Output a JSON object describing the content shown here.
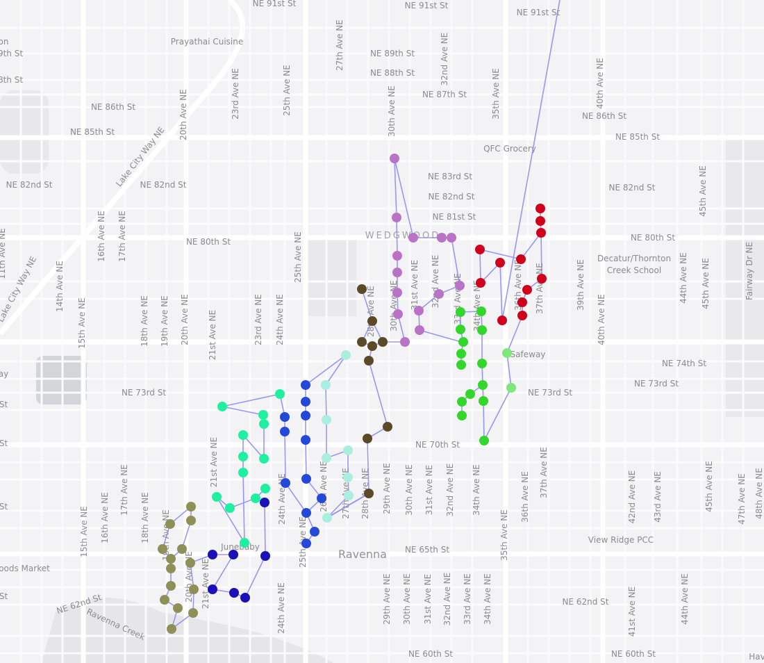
{
  "map": {
    "background_color": "#f3f3f5",
    "road_color": "#ffffff",
    "route_line_color": "#8c8cf5",
    "labels": [
      "NE 91st St",
      "NE 91st St",
      "NE 91st St",
      "Prayathai Cuisine",
      "NE 89th St",
      "NE 88th St",
      "NE 87th St",
      "NE 86th St",
      "NE 86th St",
      "NE 85th St",
      "NE 85th St",
      "QFC Grocery",
      "NE 83rd St",
      "NE 82nd St",
      "NE 82nd St",
      "NE 82nd St",
      "NE 82nd St",
      "NE 81st St",
      "WEDGWOOD",
      "NE 80th St",
      "NE 80th St",
      "Decatur/Thornton",
      "Creek School",
      "Safeway",
      "NE 74th St",
      "NE 73rd St",
      "NE 73rd St",
      "NE 73rd St",
      "NE 70th St",
      "View Ridge PCC",
      "Junebaby",
      "Ravenna",
      "NE 65th St",
      "oods Market",
      "NE 62nd St",
      "Ravenna Creek",
      "NE 62nd St",
      "NE 60th St",
      "NE 60th St",
      "on",
      "9th St",
      "8th St",
      "ay",
      "St",
      "St",
      "St",
      "St",
      "Hav",
      "20th Ave NE",
      "23rd Ave NE",
      "25th Ave NE",
      "27th Ave NE",
      "30th Ave NE",
      "32nd Ave NE",
      "35th Ave NE",
      "40th Ave NE",
      "Lake City Way NE",
      "Lake City Way NE",
      "11th Ave NE",
      "14th Ave NE",
      "15th Ave NE",
      "16th Ave NE",
      "17th Ave NE",
      "18th Ave NE",
      "19th Ave NE",
      "20th Ave NE",
      "21st Ave NE",
      "23rd Ave NE",
      "24th Ave NE",
      "25th Ave NE",
      "28th Ave NE",
      "30th Ave NE",
      "31st Ave NE",
      "32nd Ave NE",
      "33rd Ave NE",
      "34th Ave NE",
      "36th Ave NE",
      "37th Ave NE",
      "39th Ave NE",
      "40th Ave NE",
      "44th Ave NE",
      "45th Ave NE",
      "45th Ave NE",
      "Fairway Dr NE",
      "17th Ave NE",
      "16th Ave NE",
      "15th Ave NE",
      "18th Ave NE",
      "21st Ave NE",
      "21st Ave NE",
      "20th Ave NE",
      "19th Ave NE",
      "24th Ave NE",
      "24th Ave NE",
      "25th Ave NE",
      "26th Ave NE",
      "27th Ave NE",
      "28th Ave NE",
      "29th Ave NE",
      "30th Ave NE",
      "31st Ave NE",
      "32nd Ave NE",
      "34th Ave NE",
      "35th Ave NE",
      "36th Ave NE",
      "37th Ave NE",
      "42nd Ave NE",
      "43rd Ave NE",
      "45th Ave NE",
      "47th Ave NE",
      "48th Ave NE",
      "29th Ave NE",
      "30th Ave NE",
      "31st Ave NE",
      "32nd Ave NE",
      "33rd Ave NE",
      "34th Ave NE",
      "41st Ave NE",
      "44th Ave NE"
    ],
    "routes": [
      {
        "color": "#b972c6"
      },
      {
        "color": "#d0021b"
      },
      {
        "color": "#33d62a"
      },
      {
        "color": "#7ee87a"
      },
      {
        "color": "#5a4a28"
      },
      {
        "color": "#a9eedf"
      },
      {
        "color": "#2448d8"
      },
      {
        "color": "#1ef0a0"
      },
      {
        "color": "#1a12b8"
      },
      {
        "color": "#8f8f58"
      }
    ]
  }
}
